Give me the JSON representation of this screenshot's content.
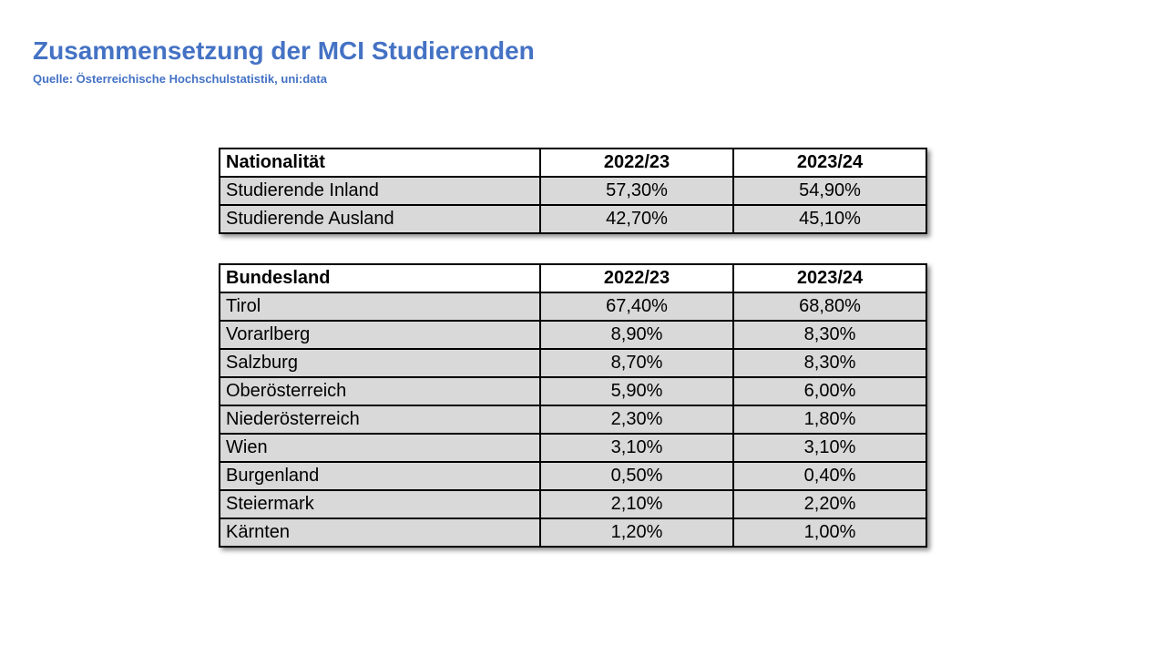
{
  "slide": {
    "title": "Zusammensetzung der MCI Studierenden",
    "subtitle": "Quelle: Österreichische Hochschulstatistik, uni:data"
  },
  "nationality_table": {
    "headers": [
      "Nationalität",
      "2022/23",
      "2023/24"
    ],
    "rows": [
      [
        "Studierende Inland",
        "57,30%",
        "54,90%"
      ],
      [
        "Studierende Ausland",
        "42,70%",
        "45,10%"
      ]
    ]
  },
  "state_table": {
    "headers": [
      "Bundesland",
      "2022/23",
      "2023/24"
    ],
    "rows": [
      [
        "Tirol",
        "67,40%",
        "68,80%"
      ],
      [
        "Vorarlberg",
        "8,90%",
        "8,30%"
      ],
      [
        "Salzburg",
        "8,70%",
        "8,30%"
      ],
      [
        "Oberösterreich",
        "5,90%",
        "6,00%"
      ],
      [
        "Niederösterreich",
        "2,30%",
        "1,80%"
      ],
      [
        "Wien",
        "3,10%",
        "3,10%"
      ],
      [
        "Burgenland",
        "0,50%",
        "0,40%"
      ],
      [
        "Steiermark",
        "2,10%",
        "2,20%"
      ],
      [
        "Kärnten",
        "1,20%",
        "1,00%"
      ]
    ]
  },
  "colors": {
    "title": "#4472c4",
    "row_fill": "#d9d9d9",
    "header_fill": "#ffffff"
  }
}
